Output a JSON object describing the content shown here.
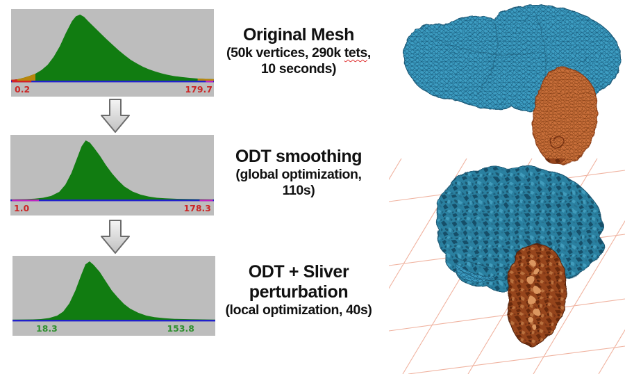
{
  "figure": {
    "steps": [
      {
        "title": "Original Mesh",
        "sub1_pre": "(50k vertices, 290k ",
        "sub1_word": "tets",
        "sub1_post": ",",
        "sub2": "10 seconds)",
        "hist_min": "0.2",
        "hist_max": "179.7"
      },
      {
        "title": "ODT smoothing",
        "sub1": "(global optimization,",
        "sub2": "110s)",
        "hist_min": "1.0",
        "hist_max": "178.3"
      },
      {
        "title1": "ODT + Sliver",
        "title2": "perturbation",
        "sub1": "(local optimization, 40s)",
        "hist_min": "18.3",
        "hist_max": "153.8"
      }
    ]
  },
  "chart_data": [
    {
      "type": "area",
      "title": "Original mesh angle histogram",
      "x_min": 0.2,
      "x_max": 179.7,
      "x_min_label": "0.2",
      "x_max_label": "179.7",
      "label_color": "#cc2626",
      "area_color": "#117c11",
      "baseline_color": "#2121cc",
      "y_normalized": true,
      "points": [
        [
          0,
          0.012
        ],
        [
          0.03,
          0.02
        ],
        [
          0.06,
          0.042
        ],
        [
          0.09,
          0.07
        ],
        [
          0.12,
          0.105
        ],
        [
          0.15,
          0.16
        ],
        [
          0.18,
          0.24
        ],
        [
          0.21,
          0.36
        ],
        [
          0.24,
          0.52
        ],
        [
          0.27,
          0.72
        ],
        [
          0.3,
          0.9
        ],
        [
          0.32,
          0.975
        ],
        [
          0.34,
          1.0
        ],
        [
          0.36,
          0.965
        ],
        [
          0.38,
          0.9
        ],
        [
          0.41,
          0.81
        ],
        [
          0.44,
          0.72
        ],
        [
          0.47,
          0.63
        ],
        [
          0.5,
          0.545
        ],
        [
          0.53,
          0.46
        ],
        [
          0.56,
          0.385
        ],
        [
          0.59,
          0.315
        ],
        [
          0.62,
          0.26
        ],
        [
          0.65,
          0.21
        ],
        [
          0.68,
          0.17
        ],
        [
          0.71,
          0.14
        ],
        [
          0.74,
          0.112
        ],
        [
          0.77,
          0.09
        ],
        [
          0.8,
          0.072
        ],
        [
          0.84,
          0.055
        ],
        [
          0.88,
          0.042
        ],
        [
          0.92,
          0.032
        ],
        [
          0.96,
          0.026
        ],
        [
          1,
          0.022
        ]
      ],
      "overlays": [
        {
          "type": "area",
          "from": 0,
          "to": 0.12,
          "color": "#b8860b"
        },
        {
          "type": "area",
          "from": 0,
          "to": 0.03,
          "color": "#d42222"
        },
        {
          "type": "area",
          "from": 0.92,
          "to": 1,
          "color": "#b8860b"
        }
      ],
      "base_segments": [
        {
          "from": 0.004,
          "to": 0.1,
          "color": "#d42222"
        },
        {
          "from": 0.96,
          "to": 0.997,
          "color": "#c024c0"
        }
      ]
    },
    {
      "type": "area",
      "title": "ODT smoothing angle histogram",
      "x_min": 1.0,
      "x_max": 178.3,
      "x_min_label": "1.0",
      "x_max_label": "178.3",
      "label_color": "#cc2626",
      "area_color": "#117c11",
      "baseline_color": "#2121cc",
      "y_normalized": true,
      "points": [
        [
          0,
          0.004
        ],
        [
          0.08,
          0.007
        ],
        [
          0.12,
          0.014
        ],
        [
          0.16,
          0.03
        ],
        [
          0.2,
          0.06
        ],
        [
          0.24,
          0.13
        ],
        [
          0.27,
          0.25
        ],
        [
          0.3,
          0.45
        ],
        [
          0.33,
          0.72
        ],
        [
          0.35,
          0.9
        ],
        [
          0.37,
          1.0
        ],
        [
          0.39,
          0.965
        ],
        [
          0.41,
          0.88
        ],
        [
          0.44,
          0.74
        ],
        [
          0.47,
          0.58
        ],
        [
          0.5,
          0.44
        ],
        [
          0.53,
          0.32
        ],
        [
          0.56,
          0.22
        ],
        [
          0.6,
          0.135
        ],
        [
          0.64,
          0.082
        ],
        [
          0.68,
          0.05
        ],
        [
          0.72,
          0.03
        ],
        [
          0.76,
          0.02
        ],
        [
          0.82,
          0.012
        ],
        [
          0.9,
          0.007
        ],
        [
          1,
          0.004
        ]
      ],
      "overlays": [],
      "base_segments": [
        {
          "from": 0.008,
          "to": 0.14,
          "color": "#c024c0"
        },
        {
          "from": 0.93,
          "to": 0.995,
          "color": "#c024c0"
        }
      ]
    },
    {
      "type": "area",
      "title": "ODT + sliver perturbation angle histogram",
      "x_min": 18.3,
      "x_max": 153.8,
      "x_min_label": "18.3",
      "x_max_label": "153.8",
      "label_color": "#2f8f2f",
      "area_color": "#117c11",
      "baseline_color": "#2121cc",
      "y_normalized": true,
      "points": [
        [
          0,
          0.004
        ],
        [
          0.1,
          0.006
        ],
        [
          0.14,
          0.012
        ],
        [
          0.18,
          0.03
        ],
        [
          0.22,
          0.07
        ],
        [
          0.25,
          0.14
        ],
        [
          0.28,
          0.28
        ],
        [
          0.31,
          0.5
        ],
        [
          0.34,
          0.78
        ],
        [
          0.36,
          0.95
        ],
        [
          0.38,
          1.0
        ],
        [
          0.4,
          0.94
        ],
        [
          0.43,
          0.82
        ],
        [
          0.46,
          0.66
        ],
        [
          0.49,
          0.5
        ],
        [
          0.52,
          0.38
        ],
        [
          0.55,
          0.27
        ],
        [
          0.58,
          0.19
        ],
        [
          0.62,
          0.12
        ],
        [
          0.66,
          0.072
        ],
        [
          0.7,
          0.045
        ],
        [
          0.75,
          0.026
        ],
        [
          0.8,
          0.016
        ],
        [
          0.88,
          0.008
        ],
        [
          1,
          0.004
        ]
      ],
      "overlays": [],
      "base_segments": []
    }
  ],
  "colors": {
    "panel_bg": "#bdbdbd",
    "hist_green": "#117c11",
    "baseline_blue": "#2121cc",
    "label_red": "#cc2626",
    "label_green": "#2f8f2f",
    "mesh_blue": "#3d9dc2",
    "mesh_orange": "#c9703a",
    "brain_blue": "#2b80a0",
    "organ_brown": "#96451c",
    "grid_salmon": "#f0b3a0"
  }
}
